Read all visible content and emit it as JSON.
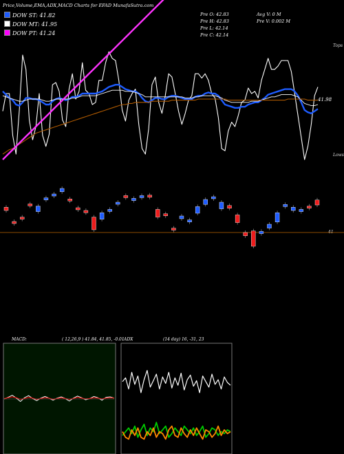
{
  "header": {
    "title": "Price,Volume,EMA,ADX,MACD Charts for EFAD MunafaSutra.com",
    "pv_open": "Pre  O: 42.83",
    "pv_high": "Pre  H: 42.83",
    "pv_low": "Pre  L: 42.14",
    "pv_close": "Pre  C: 42.14",
    "avg_vol": "Avg V: 0  M",
    "pre_vol": "Pre  V: 0.002  M"
  },
  "legend": [
    {
      "label": "DOW ST: 41.82",
      "color": "#1e5cff"
    },
    {
      "label": "DOW MT: 41.95",
      "color": "#ffffff"
    },
    {
      "label": "DOW PT: 41.24",
      "color": "#ff00ff"
    }
  ],
  "ema_panel": {
    "top_label": "Tops",
    "lows_label": "Lows",
    "last_value": "41.98"
  },
  "price_panel": {
    "level_label": "41"
  },
  "macd_header": {
    "name": "MACD:",
    "params": "( 12,26,9 ) 41.84, 41.85, -0.01"
  },
  "adx_header": {
    "name": "ADX",
    "params": "(14  day) 16, -31, 23"
  },
  "colors": {
    "blue": "#1e5cff",
    "magenta": "#ff33ff",
    "brown": "#b05a00",
    "up": "#1e5cff",
    "down": "#ee1c1c",
    "green": "#00aa00",
    "orange": "#ff8800"
  },
  "chart_data": [
    {
      "type": "line",
      "name": "EMA panel (relative scale)",
      "series": [
        {
          "color": "#ffffff",
          "values": [
            0.44,
            0.6,
            0.6,
            0.22,
            0.05,
            0.45,
            0.95,
            0.82,
            0.36,
            0.18,
            0.3,
            0.6,
            0.22,
            0.12,
            0.23,
            0.68,
            0.7,
            0.62,
            0.36,
            0.3,
            0.64,
            0.78,
            0.55,
            0.62,
            0.88,
            0.63,
            0.6,
            0.5,
            0.52,
            0.72,
            0.72,
            0.88,
            0.98,
            0.92,
            0.9,
            0.72,
            0.45,
            0.35,
            0.54,
            0.6,
            0.64,
            0.32,
            0.1,
            0.05,
            0.28,
            0.68,
            0.75,
            0.52,
            0.42,
            0.58,
            0.78,
            0.75,
            0.6,
            0.44,
            0.32,
            0.42,
            0.54,
            0.58,
            0.78,
            0.78,
            0.74,
            0.78,
            0.72,
            0.6,
            0.56,
            0.38,
            0.1,
            0.08,
            0.26,
            0.34,
            0.3,
            0.4,
            0.52,
            0.54,
            0.65,
            0.6,
            0.62,
            0.56,
            0.72,
            0.82,
            0.92,
            0.82,
            0.82,
            0.85,
            0.9,
            0.9,
            0.9,
            0.8,
            0.6,
            0.4,
            0.2,
            0.0,
            0.12,
            0.32,
            0.58,
            0.66
          ]
        },
        {
          "color": "#1e5cff",
          "values": [
            0.62,
            0.59,
            0.56,
            0.54,
            0.5,
            0.49,
            0.52,
            0.56,
            0.56,
            0.55,
            0.55,
            0.54,
            0.52,
            0.5,
            0.5,
            0.53,
            0.55,
            0.56,
            0.55,
            0.54,
            0.55,
            0.57,
            0.57,
            0.58,
            0.6,
            0.6,
            0.6,
            0.6,
            0.6,
            0.61,
            0.62,
            0.64,
            0.66,
            0.67,
            0.68,
            0.68,
            0.66,
            0.64,
            0.63,
            0.62,
            0.62,
            0.6,
            0.56,
            0.53,
            0.52,
            0.54,
            0.56,
            0.56,
            0.55,
            0.55,
            0.57,
            0.58,
            0.58,
            0.57,
            0.56,
            0.55,
            0.55,
            0.55,
            0.57,
            0.58,
            0.58,
            0.6,
            0.61,
            0.6,
            0.6,
            0.58,
            0.54,
            0.5,
            0.49,
            0.48,
            0.47,
            0.47,
            0.48,
            0.48,
            0.5,
            0.51,
            0.52,
            0.52,
            0.54,
            0.56,
            0.59,
            0.6,
            0.61,
            0.62,
            0.63,
            0.64,
            0.64,
            0.64,
            0.62,
            0.58,
            0.52,
            0.45,
            0.43,
            0.42,
            0.44,
            0.46
          ]
        },
        {
          "color": "#ffffff",
          "values": [
            0.58,
            0.57,
            0.56,
            0.55,
            0.54,
            0.53,
            0.53,
            0.54,
            0.55,
            0.55,
            0.55,
            0.55,
            0.54,
            0.53,
            0.53,
            0.54,
            0.55,
            0.55,
            0.55,
            0.55,
            0.55,
            0.56,
            0.56,
            0.57,
            0.58,
            0.58,
            0.58,
            0.58,
            0.58,
            0.59,
            0.6,
            0.61,
            0.62,
            0.63,
            0.63,
            0.63,
            0.63,
            0.62,
            0.62,
            0.62,
            0.61,
            0.6,
            0.59,
            0.57,
            0.57,
            0.57,
            0.57,
            0.57,
            0.57,
            0.57,
            0.57,
            0.57,
            0.57,
            0.57,
            0.57,
            0.56,
            0.56,
            0.56,
            0.57,
            0.57,
            0.58,
            0.58,
            0.58,
            0.58,
            0.58,
            0.57,
            0.56,
            0.54,
            0.53,
            0.52,
            0.52,
            0.52,
            0.52,
            0.52,
            0.52,
            0.53,
            0.53,
            0.53,
            0.54,
            0.55,
            0.56,
            0.57,
            0.57,
            0.58,
            0.59,
            0.59,
            0.59,
            0.59,
            0.58,
            0.57,
            0.54,
            0.51,
            0.5,
            0.49,
            0.49,
            0.5
          ]
        },
        {
          "color": "#b05a00",
          "values": [
            0.05,
            0.07,
            0.09,
            0.1,
            0.12,
            0.14,
            0.16,
            0.18,
            0.2,
            0.22,
            0.24,
            0.25,
            0.26,
            0.27,
            0.28,
            0.29,
            0.3,
            0.31,
            0.32,
            0.33,
            0.34,
            0.35,
            0.36,
            0.37,
            0.38,
            0.39,
            0.4,
            0.41,
            0.42,
            0.43,
            0.44,
            0.45,
            0.46,
            0.47,
            0.48,
            0.49,
            0.5,
            0.5,
            0.51,
            0.51,
            0.52,
            0.52,
            0.52,
            0.52,
            0.52,
            0.53,
            0.53,
            0.53,
            0.53,
            0.53,
            0.53,
            0.54,
            0.54,
            0.54,
            0.54,
            0.54,
            0.54,
            0.54,
            0.54,
            0.55,
            0.55,
            0.55,
            0.55,
            0.55,
            0.55,
            0.55,
            0.55,
            0.55,
            0.54,
            0.54,
            0.54,
            0.54,
            0.54,
            0.54,
            0.54,
            0.54,
            0.54,
            0.54,
            0.54,
            0.54,
            0.54,
            0.54,
            0.54,
            0.54,
            0.54,
            0.54,
            0.55,
            0.55,
            0.55,
            0.55,
            0.55,
            0.55,
            0.54,
            0.54,
            0.54,
            0.54
          ]
        },
        {
          "color": "#ff33ff",
          "values": [
            0.0,
            0.03,
            0.06,
            0.09,
            0.12,
            0.15,
            0.18,
            0.21,
            0.24,
            0.27,
            0.3,
            0.33,
            0.36,
            0.39,
            0.42,
            0.45,
            0.48,
            0.51,
            0.54,
            0.57,
            0.6,
            0.63,
            0.66,
            0.69,
            0.72,
            0.75,
            0.78,
            0.81,
            0.84,
            0.87,
            0.9,
            0.93,
            0.96,
            0.99,
            1.02,
            1.05,
            1.08,
            1.11,
            1.14,
            1.17,
            1.2,
            1.23,
            1.26,
            1.29,
            1.32,
            1.35,
            1.38,
            1.41,
            1.44,
            1.47,
            1.5,
            1.53,
            1.56,
            1.59,
            1.62,
            1.65,
            1.68,
            1.71,
            1.74,
            1.77,
            1.8,
            1.83,
            1.86,
            1.89,
            1.92,
            1.95,
            1.98,
            2.01,
            2.04,
            2.07,
            2.1,
            2.13,
            2.16,
            2.19,
            2.22,
            2.25,
            2.28,
            2.31,
            2.34,
            2.37,
            2.4,
            2.43,
            2.46,
            2.49,
            2.52,
            2.55,
            2.58,
            2.61,
            2.64,
            2.67,
            2.7,
            2.73,
            2.76,
            2.79,
            2.82,
            2.85
          ]
        }
      ]
    },
    {
      "type": "candlestick",
      "name": "Price candles (relative scale)",
      "candles": [
        {
          "o": 0.4,
          "c": 0.46,
          "up": false
        },
        {
          "o": 0.2,
          "c": 0.17,
          "up": false
        },
        {
          "o": 0.28,
          "c": 0.25,
          "up": false
        },
        {
          "o": 0.5,
          "c": 0.52,
          "up": false
        },
        {
          "o": 0.38,
          "c": 0.48,
          "up": true
        },
        {
          "o": 0.6,
          "c": 0.63,
          "up": true
        },
        {
          "o": 0.68,
          "c": 0.7,
          "up": true
        },
        {
          "o": 0.74,
          "c": 0.8,
          "up": true
        },
        {
          "o": 0.6,
          "c": 0.61,
          "up": false
        },
        {
          "o": 0.45,
          "c": 0.43,
          "up": false
        },
        {
          "o": 0.4,
          "c": 0.36,
          "up": false
        },
        {
          "o": 0.28,
          "c": 0.05,
          "up": false
        },
        {
          "o": 0.24,
          "c": 0.36,
          "up": true
        },
        {
          "o": 0.4,
          "c": 0.42,
          "up": true
        },
        {
          "o": 0.52,
          "c": 0.55,
          "up": true
        },
        {
          "o": 0.66,
          "c": 0.67,
          "up": false
        },
        {
          "o": 0.58,
          "c": 0.62,
          "up": true
        },
        {
          "o": 0.64,
          "c": 0.67,
          "up": true
        },
        {
          "o": 0.64,
          "c": 0.68,
          "up": false
        },
        {
          "o": 0.42,
          "c": 0.28,
          "up": false
        },
        {
          "o": 0.33,
          "c": 0.34,
          "up": false
        },
        {
          "o": 0.08,
          "c": 0.06,
          "up": false
        },
        {
          "o": 0.25,
          "c": 0.3,
          "up": true
        },
        {
          "o": 0.23,
          "c": 0.19,
          "up": true
        },
        {
          "o": 0.35,
          "c": 0.47,
          "up": true
        },
        {
          "o": 0.51,
          "c": 0.6,
          "up": true
        },
        {
          "o": 0.62,
          "c": 0.65,
          "up": true
        },
        {
          "o": 0.55,
          "c": 0.43,
          "up": true
        },
        {
          "o": 0.49,
          "c": 0.44,
          "up": false
        },
        {
          "o": 0.32,
          "c": 0.18,
          "up": false
        },
        {
          "o": 0.0,
          "c": -0.06,
          "up": false
        },
        {
          "o": 0.03,
          "c": -0.25,
          "up": false
        },
        {
          "o": -0.02,
          "c": 0.02,
          "up": true
        },
        {
          "o": 0.08,
          "c": 0.15,
          "up": true
        },
        {
          "o": 0.19,
          "c": 0.36,
          "up": true
        },
        {
          "o": 0.47,
          "c": 0.51,
          "up": true
        },
        {
          "o": 0.4,
          "c": 0.46,
          "up": true
        },
        {
          "o": 0.42,
          "c": 0.38,
          "up": true
        },
        {
          "o": 0.45,
          "c": 0.48,
          "up": false
        },
        {
          "o": 0.59,
          "c": 0.5,
          "up": false
        }
      ]
    },
    {
      "type": "line",
      "name": "MACD panel",
      "series": [
        {
          "color": "#ffffff",
          "values": [
            0.0,
            0.4,
            0.9,
            0.2,
            -0.6,
            0.3,
            0.8,
            0.1,
            -0.4,
            0.2,
            0.6,
            0.2,
            -0.3,
            0.2,
            0.5,
            0.1,
            -0.5,
            0.2,
            0.7,
            0.3,
            -0.2,
            0.1,
            0.6,
            0.3,
            -0.3,
            0.4,
            0.5,
            0.2
          ]
        },
        {
          "color": "#ff0000",
          "values": [
            0.1,
            0.3,
            0.5,
            0.3,
            -0.1,
            0.1,
            0.4,
            0.2,
            -0.1,
            0.1,
            0.3,
            0.2,
            -0.1,
            0.1,
            0.3,
            0.1,
            -0.1,
            0.1,
            0.4,
            0.2,
            0.0,
            0.1,
            0.3,
            0.2,
            0.0,
            0.2,
            0.3,
            0.2
          ]
        }
      ]
    },
    {
      "type": "line",
      "name": "ADX panel",
      "series": [
        {
          "color": "#ffffff",
          "values": [
            78,
            82,
            70,
            88,
            75,
            84,
            66,
            80,
            90,
            72,
            79,
            86,
            70,
            83,
            76,
            88,
            71,
            82,
            74,
            87,
            69,
            80,
            85,
            73,
            79,
            66,
            84,
            78,
            72,
            86,
            75,
            80,
            70,
            83,
            77,
            74
          ]
        },
        {
          "color": "#00cc00",
          "values": [
            20,
            24,
            28,
            22,
            30,
            18,
            26,
            32,
            20,
            28,
            24,
            34,
            22,
            26,
            30,
            18,
            22,
            28,
            24,
            20,
            30,
            26,
            22,
            28,
            20,
            24,
            30,
            18,
            22,
            28,
            26,
            20,
            24,
            22,
            26,
            24
          ]
        },
        {
          "color": "#ff8800",
          "values": [
            24,
            18,
            16,
            26,
            20,
            28,
            18,
            16,
            24,
            20,
            28,
            18,
            24,
            22,
            16,
            26,
            30,
            20,
            18,
            28,
            22,
            18,
            26,
            20,
            28,
            22,
            16,
            26,
            24,
            18,
            22,
            30,
            20,
            26,
            22,
            24
          ]
        }
      ]
    }
  ]
}
